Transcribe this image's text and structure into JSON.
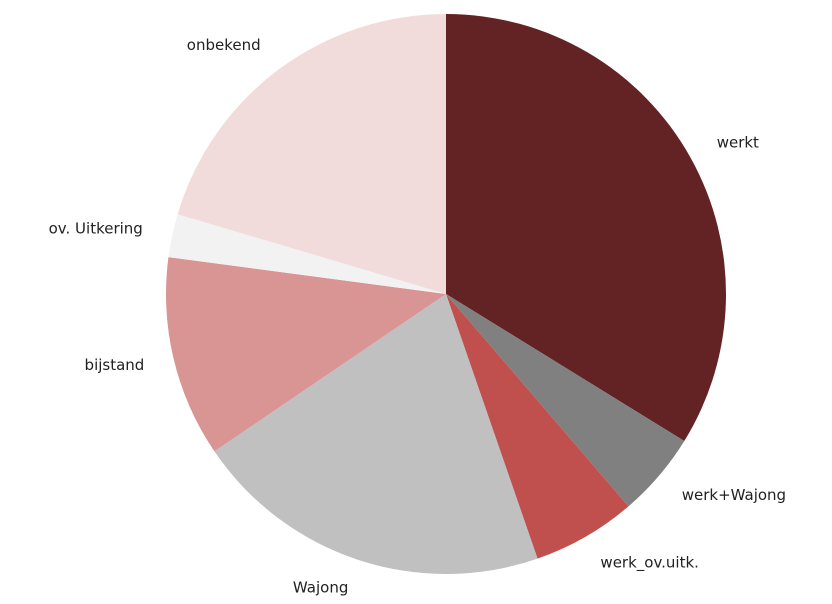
{
  "chart_data": {
    "type": "pie",
    "categories": [
      "werkt",
      "werk+Wajong",
      "werk_ov.uitk.",
      "Wajong",
      "bijstand",
      "ov. Uitkering",
      "onbekend"
    ],
    "values": [
      33.8,
      4.9,
      6.0,
      20.8,
      11.6,
      2.5,
      20.4
    ],
    "colors": [
      "#632325",
      "#808080",
      "#c0504d",
      "#c0c0c0",
      "#d99594",
      "#f2f2f2",
      "#f2dcdb"
    ]
  }
}
